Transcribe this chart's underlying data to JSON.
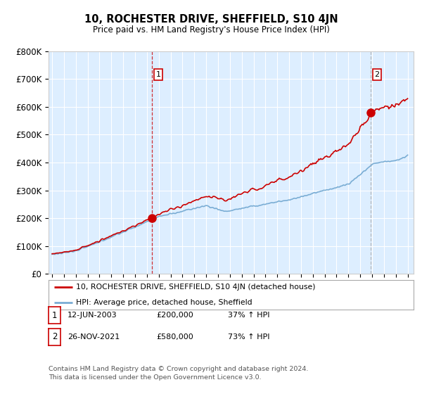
{
  "title": "10, ROCHESTER DRIVE, SHEFFIELD, S10 4JN",
  "subtitle": "Price paid vs. HM Land Registry's House Price Index (HPI)",
  "property_label": "10, ROCHESTER DRIVE, SHEFFIELD, S10 4JN (detached house)",
  "hpi_label": "HPI: Average price, detached house, Sheffield",
  "property_color": "#cc0000",
  "hpi_color": "#7aadd4",
  "sale1_date": "12-JUN-2003",
  "sale1_price": "£200,000",
  "sale1_hpi": "37% ↑ HPI",
  "sale1_label": "1",
  "sale2_date": "26-NOV-2021",
  "sale2_price": "£580,000",
  "sale2_hpi": "73% ↑ HPI",
  "sale2_label": "2",
  "footer": "Contains HM Land Registry data © Crown copyright and database right 2024.\nThis data is licensed under the Open Government Licence v3.0.",
  "ylim_min": 0,
  "ylim_max": 800000,
  "yticks": [
    0,
    100000,
    200000,
    300000,
    400000,
    500000,
    600000,
    700000,
    800000
  ],
  "ytick_labels": [
    "£0",
    "£100K",
    "£200K",
    "£300K",
    "£400K",
    "£500K",
    "£600K",
    "£700K",
    "£800K"
  ],
  "background_color": "#ffffff",
  "plot_bg_color": "#ddeeff",
  "grid_color": "#ffffff",
  "sale1_year": 2003.45,
  "sale2_year": 2021.9,
  "sale1_price_val": 200000,
  "sale2_price_val": 580000
}
